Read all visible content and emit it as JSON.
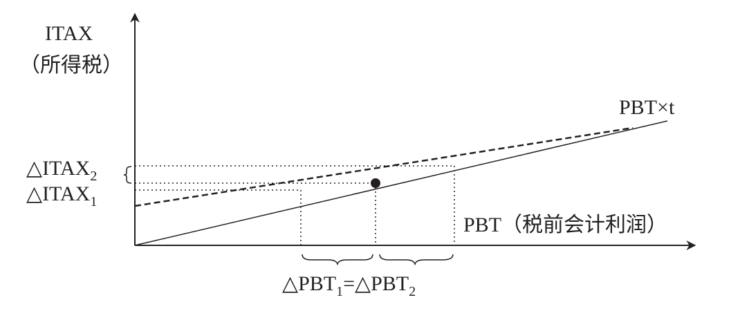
{
  "axes": {
    "y_label": "ITAX",
    "y_label_cn": "（所得税）",
    "x_label": "PBT（税前会计利润）"
  },
  "lines": {
    "solid_label": "PBT×t"
  },
  "annotations": {
    "delta_itax_2": {
      "text": "△ITAX",
      "sub": "2"
    },
    "delta_itax_1": {
      "text": "△ITAX",
      "sub": "1"
    }
  },
  "bottom": {
    "parts": [
      {
        "text": "△PBT",
        "sub": "1"
      },
      {
        "text": "=△PBT",
        "sub": "2"
      }
    ]
  }
}
